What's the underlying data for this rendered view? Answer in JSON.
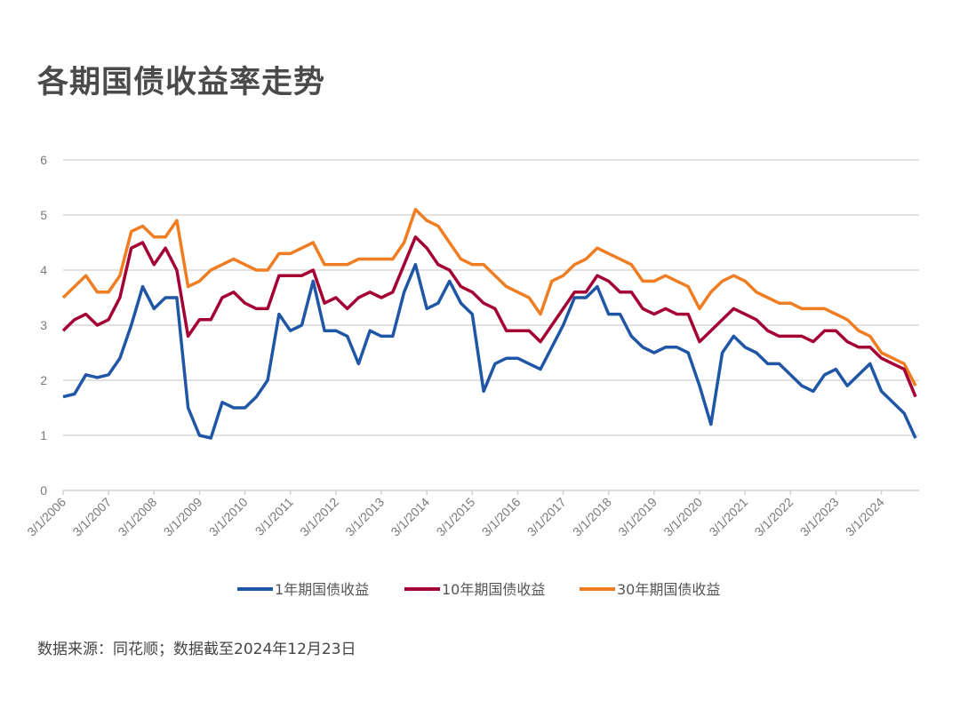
{
  "chart_data": {
    "type": "line",
    "title": "各期国债收益率走势",
    "source": "数据来源：同花顺；数据截至2024年12月23日",
    "ylim": [
      0,
      6
    ],
    "yticks": [
      "0",
      "1",
      "2",
      "3",
      "4",
      "5",
      "6"
    ],
    "xlim": [
      "2006-03",
      "2024-12"
    ],
    "xticks": [
      "3/1/2006",
      "3/1/2007",
      "3/1/2008",
      "3/1/2009",
      "3/1/2010",
      "3/1/2011",
      "3/1/2012",
      "3/1/2013",
      "3/1/2014",
      "3/1/2015",
      "3/1/2016",
      "3/1/2017",
      "3/1/2018",
      "3/1/2019",
      "3/1/2020",
      "3/1/2021",
      "3/1/2022",
      "3/1/2023",
      "3/1/2024"
    ],
    "grid": true,
    "legend": "bottom",
    "x": [
      "2006-03",
      "2006-06",
      "2006-09",
      "2006-12",
      "2007-03",
      "2007-06",
      "2007-09",
      "2007-12",
      "2008-03",
      "2008-06",
      "2008-09",
      "2008-12",
      "2009-03",
      "2009-06",
      "2009-09",
      "2009-12",
      "2010-03",
      "2010-06",
      "2010-09",
      "2010-12",
      "2011-03",
      "2011-06",
      "2011-09",
      "2011-12",
      "2012-03",
      "2012-06",
      "2012-09",
      "2012-12",
      "2013-03",
      "2013-06",
      "2013-09",
      "2013-12",
      "2014-03",
      "2014-06",
      "2014-09",
      "2014-12",
      "2015-03",
      "2015-06",
      "2015-09",
      "2015-12",
      "2016-03",
      "2016-06",
      "2016-09",
      "2016-12",
      "2017-03",
      "2017-06",
      "2017-09",
      "2017-12",
      "2018-03",
      "2018-06",
      "2018-09",
      "2018-12",
      "2019-03",
      "2019-06",
      "2019-09",
      "2019-12",
      "2020-03",
      "2020-06",
      "2020-09",
      "2020-12",
      "2021-03",
      "2021-06",
      "2021-09",
      "2021-12",
      "2022-03",
      "2022-06",
      "2022-09",
      "2022-12",
      "2023-03",
      "2023-06",
      "2023-09",
      "2023-12",
      "2024-03",
      "2024-06",
      "2024-09",
      "2024-12"
    ],
    "series": [
      {
        "name": "1年期国债收益",
        "color": "#1f56a6",
        "values": [
          1.7,
          1.75,
          2.1,
          2.05,
          2.1,
          2.4,
          3.0,
          3.7,
          3.3,
          3.5,
          3.5,
          1.5,
          1.0,
          0.95,
          1.6,
          1.5,
          1.5,
          1.7,
          2.0,
          3.2,
          2.9,
          3.0,
          3.8,
          2.9,
          2.9,
          2.8,
          2.3,
          2.9,
          2.8,
          2.8,
          3.6,
          4.1,
          3.3,
          3.4,
          3.8,
          3.4,
          3.2,
          1.8,
          2.3,
          2.4,
          2.4,
          2.3,
          2.2,
          2.6,
          3.0,
          3.5,
          3.5,
          3.7,
          3.2,
          3.2,
          2.8,
          2.6,
          2.5,
          2.6,
          2.6,
          2.5,
          1.9,
          1.2,
          2.5,
          2.8,
          2.6,
          2.5,
          2.3,
          2.3,
          2.1,
          1.9,
          1.8,
          2.1,
          2.2,
          1.9,
          2.1,
          2.3,
          1.8,
          1.6,
          1.4,
          0.95
        ]
      },
      {
        "name": "10年期国债收益",
        "color": "#a50034",
        "values": [
          2.9,
          3.1,
          3.2,
          3.0,
          3.1,
          3.5,
          4.4,
          4.5,
          4.1,
          4.4,
          4.0,
          2.8,
          3.1,
          3.1,
          3.5,
          3.6,
          3.4,
          3.3,
          3.3,
          3.9,
          3.9,
          3.9,
          4.0,
          3.4,
          3.5,
          3.3,
          3.5,
          3.6,
          3.5,
          3.6,
          4.1,
          4.6,
          4.4,
          4.1,
          4.0,
          3.7,
          3.6,
          3.4,
          3.3,
          2.9,
          2.9,
          2.9,
          2.7,
          3.0,
          3.3,
          3.6,
          3.6,
          3.9,
          3.8,
          3.6,
          3.6,
          3.3,
          3.2,
          3.3,
          3.2,
          3.2,
          2.7,
          2.9,
          3.1,
          3.3,
          3.2,
          3.1,
          2.9,
          2.8,
          2.8,
          2.8,
          2.7,
          2.9,
          2.9,
          2.7,
          2.6,
          2.6,
          2.4,
          2.3,
          2.2,
          1.7
        ]
      },
      {
        "name": "30年期国债收益",
        "color": "#f07d22",
        "values": [
          3.5,
          3.7,
          3.9,
          3.6,
          3.6,
          3.9,
          4.7,
          4.8,
          4.6,
          4.6,
          4.9,
          3.7,
          3.8,
          4.0,
          4.1,
          4.2,
          4.1,
          4.0,
          4.0,
          4.3,
          4.3,
          4.4,
          4.5,
          4.1,
          4.1,
          4.1,
          4.2,
          4.2,
          4.2,
          4.2,
          4.5,
          5.1,
          4.9,
          4.8,
          4.5,
          4.2,
          4.1,
          4.1,
          3.9,
          3.7,
          3.6,
          3.5,
          3.2,
          3.8,
          3.9,
          4.1,
          4.2,
          4.4,
          4.3,
          4.2,
          4.1,
          3.8,
          3.8,
          3.9,
          3.8,
          3.7,
          3.3,
          3.6,
          3.8,
          3.9,
          3.8,
          3.6,
          3.5,
          3.4,
          3.4,
          3.3,
          3.3,
          3.3,
          3.2,
          3.1,
          2.9,
          2.8,
          2.5,
          2.4,
          2.3,
          1.9
        ]
      }
    ]
  }
}
